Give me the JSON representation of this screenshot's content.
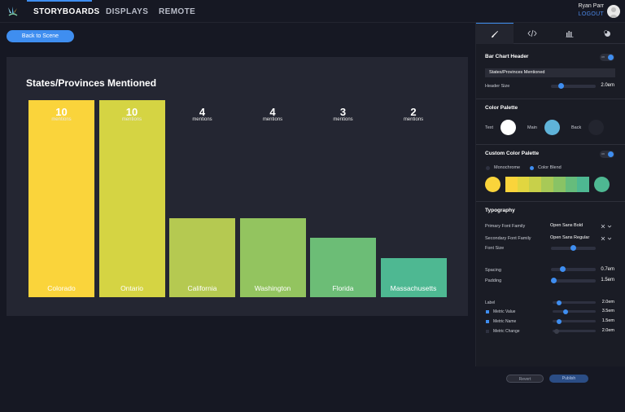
{
  "nav": {
    "tabs": [
      {
        "label": "STORYBOARDS",
        "active": true
      },
      {
        "label": "DISPLAYS",
        "active": false
      },
      {
        "label": "REMOTE",
        "active": false
      }
    ],
    "user_name": "Ryan Parr",
    "logout_label": "LOGOUT"
  },
  "back_button": {
    "label": "Back to Scene"
  },
  "chart_data": {
    "type": "bar",
    "title": "States/Provinces Mentioned",
    "categories": [
      "Colorado",
      "Ontario",
      "California",
      "Washington",
      "Florida",
      "Massachusetts"
    ],
    "values": [
      10,
      10,
      4,
      4,
      3,
      2
    ],
    "value_unit": "mentions",
    "colors": [
      "#fad43b",
      "#d5d443",
      "#b5c951",
      "#93c45f",
      "#6cbd76",
      "#4eb892"
    ],
    "xlabel": "",
    "ylabel": "",
    "grid": false
  },
  "panel": {
    "tabs": [
      "brush-icon",
      "code-icon",
      "bar-chart-icon",
      "palette-icon"
    ],
    "bar_chart_header": {
      "title": "Bar Chart Header",
      "toggle": "on",
      "text_value": "States/Provinces Mentioned",
      "header_size_label": "Header Size",
      "header_size_value": "2.0em",
      "header_size_level": 0.18
    },
    "color_palette": {
      "title": "Color Palette",
      "text_label": "Text",
      "main_label": "Main",
      "back_label": "Back",
      "text_color": "#ffffff",
      "main_color": "#5fb3d9",
      "back_color": "#23252f"
    },
    "custom_palette": {
      "title": "Custom Color Palette",
      "toggle": "on",
      "monochrome_label": "Monochrome",
      "color_blend_label": "Color Blend",
      "start_color": "#fad43b",
      "end_color": "#4eb892",
      "gradient": [
        "#fad43b",
        "#e1d640",
        "#c8d04a",
        "#a8c957",
        "#89c365",
        "#66bc7c",
        "#4eb892"
      ]
    },
    "typography": {
      "title": "Typography",
      "primary_font_label": "Primary Font Family",
      "primary_font_value": "Open Sans Bold",
      "secondary_font_label": "Secondary Font Family",
      "secondary_font_value": "Open Sans Regular",
      "font_size_label": "Font Size",
      "font_size_level": 0.5,
      "spacing_label": "Spacing",
      "spacing_value": "0.7em",
      "spacing_level": 0.22,
      "padding_label": "Padding",
      "padding_value": "1.5em",
      "padding_level": 0.0,
      "label_label": "Label",
      "label_value": "2.0em",
      "label_level": 0.1,
      "metric_value_label": "Metric Value",
      "metric_value_value": "3.5em",
      "metric_value_level": 0.28,
      "metric_name_label": "Metric Name",
      "metric_name_value": "1.5em",
      "metric_name_level": 0.1,
      "metric_change_label": "Metric Change",
      "metric_change_value": "2.0em",
      "metric_change_level": 0.05
    },
    "revert_label": "Revert",
    "publish_label": "Publish"
  }
}
